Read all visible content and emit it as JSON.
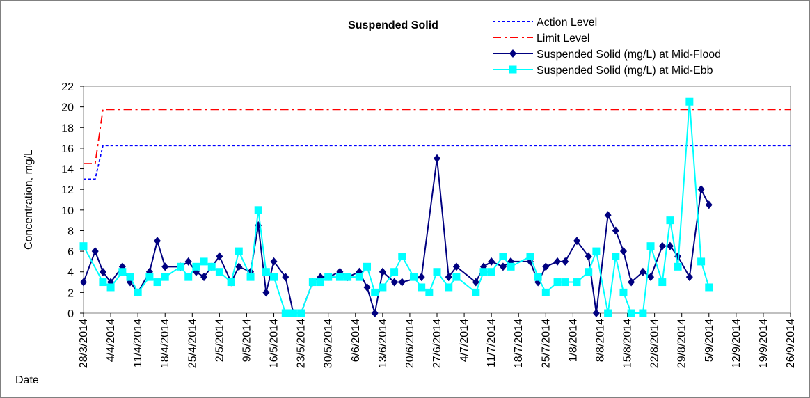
{
  "chart_data": {
    "type": "line",
    "title": "Suspended Solid",
    "y_label": "Concentration, mg/L",
    "x_label": "Date",
    "xlim": [
      "28/3/2014",
      "26/9/2014"
    ],
    "xticks": [
      "28/3/2014",
      "4/4/2014",
      "11/4/2014",
      "18/4/2014",
      "25/4/2014",
      "2/5/2014",
      "9/5/2014",
      "16/5/2014",
      "23/5/2014",
      "30/5/2014",
      "6/6/2014",
      "13/6/2014",
      "20/6/2014",
      "27/6/2014",
      "4/7/2014",
      "11/7/2014",
      "18/7/2014",
      "25/7/2014",
      "1/8/2014",
      "8/8/2014",
      "15/8/2014",
      "22/8/2014",
      "29/8/2014",
      "5/9/2014",
      "12/9/2014",
      "19/9/2014",
      "26/9/2014"
    ],
    "ylim": [
      0,
      22
    ],
    "yticks": [
      0,
      2,
      4,
      6,
      8,
      10,
      12,
      14,
      16,
      18,
      20,
      22
    ],
    "series": [
      {
        "name": "Action Level",
        "color": "#0000ff",
        "dash": "dashed",
        "marker": "none",
        "x": [
          "28/3/2014",
          "31/3/2014",
          "2/4/2014",
          "26/9/2014"
        ],
        "values": [
          13,
          13,
          16.25,
          16.25
        ]
      },
      {
        "name": "Limit Level",
        "color": "#ff0000",
        "dash": "dashdot",
        "marker": "none",
        "x": [
          "28/3/2014",
          "31/3/2014",
          "2/4/2014",
          "26/9/2014"
        ],
        "values": [
          14.5,
          14.5,
          19.75,
          19.75
        ]
      },
      {
        "name": "Suspended Solid (mg/L) at Mid-Flood",
        "color": "#000080",
        "dash": "solid",
        "marker": "diamond",
        "x": [
          "28/3/2014",
          "31/3/2014",
          "2/4/2014",
          "4/4/2014",
          "7/4/2014",
          "9/4/2014",
          "11/4/2014",
          "14/4/2014",
          "16/4/2014",
          "18/4/2014",
          "22/4/2014",
          "24/4/2014",
          "26/4/2014",
          "28/4/2014",
          "30/4/2014",
          "2/5/2014",
          "5/5/2014",
          "7/5/2014",
          "10/5/2014",
          "12/5/2014",
          "14/5/2014",
          "16/5/2014",
          "19/5/2014",
          "21/5/2014",
          "23/5/2014",
          "26/5/2014",
          "28/5/2014",
          "30/5/2014",
          "2/6/2014",
          "4/6/2014",
          "7/6/2014",
          "9/6/2014",
          "11/6/2014",
          "13/6/2014",
          "16/6/2014",
          "18/6/2014",
          "23/6/2014",
          "27/6/2014",
          "30/6/2014",
          "2/7/2014",
          "7/7/2014",
          "9/7/2014",
          "11/7/2014",
          "14/7/2014",
          "16/7/2014",
          "21/7/2014",
          "23/7/2014",
          "25/7/2014",
          "28/7/2014",
          "30/7/2014",
          "2/8/2014",
          "5/8/2014",
          "7/8/2014",
          "10/8/2014",
          "12/8/2014",
          "14/8/2014",
          "16/8/2014",
          "19/8/2014",
          "21/8/2014",
          "24/8/2014",
          "26/8/2014",
          "28/8/2014",
          "31/8/2014",
          "3/9/2014",
          "5/9/2014"
        ],
        "values": [
          3,
          6,
          4,
          3,
          4.5,
          3,
          2,
          4,
          7,
          4.5,
          4.5,
          5,
          4,
          3.5,
          4.5,
          5.5,
          3,
          4.5,
          4,
          8.5,
          2,
          5,
          3.5,
          0,
          0,
          3,
          3.5,
          3.5,
          4,
          3.5,
          4,
          2.5,
          0,
          4,
          3,
          3,
          3.5,
          15,
          3.5,
          4.5,
          3,
          4.5,
          5,
          4.5,
          5,
          5,
          3,
          4.5,
          5,
          5,
          7,
          5.5,
          0,
          9.5,
          8,
          6,
          3,
          4,
          3.5,
          6.5,
          6.5,
          5.5,
          3.5,
          12,
          10.5
        ]
      },
      {
        "name": "Suspended Solid (mg/L) at Mid-Ebb",
        "color": "#00ffff",
        "dash": "solid",
        "marker": "square",
        "x": [
          "28/3/2014",
          "2/4/2014",
          "4/4/2014",
          "7/4/2014",
          "9/4/2014",
          "11/4/2014",
          "14/4/2014",
          "16/4/2014",
          "18/4/2014",
          "22/4/2014",
          "24/4/2014",
          "26/4/2014",
          "28/4/2014",
          "30/4/2014",
          "2/5/2014",
          "5/5/2014",
          "7/5/2014",
          "10/5/2014",
          "12/5/2014",
          "14/5/2014",
          "16/5/2014",
          "19/5/2014",
          "21/5/2014",
          "23/5/2014",
          "26/5/2014",
          "28/5/2014",
          "30/5/2014",
          "2/6/2014",
          "4/6/2014",
          "7/6/2014",
          "9/6/2014",
          "11/6/2014",
          "13/6/2014",
          "16/6/2014",
          "18/6/2014",
          "21/6/2014",
          "23/6/2014",
          "25/6/2014",
          "27/6/2014",
          "30/6/2014",
          "2/7/2014",
          "7/7/2014",
          "9/7/2014",
          "11/7/2014",
          "14/7/2014",
          "16/7/2014",
          "21/7/2014",
          "23/7/2014",
          "25/7/2014",
          "28/7/2014",
          "30/7/2014",
          "2/8/2014",
          "5/8/2014",
          "7/8/2014",
          "10/8/2014",
          "12/8/2014",
          "14/8/2014",
          "16/8/2014",
          "19/8/2014",
          "21/8/2014",
          "24/8/2014",
          "26/8/2014",
          "28/8/2014",
          "31/8/2014",
          "3/9/2014",
          "5/9/2014"
        ],
        "values": [
          6.5,
          3,
          2.5,
          4,
          3.5,
          2,
          3.5,
          3,
          3.5,
          4.5,
          3.5,
          4.5,
          5,
          4.5,
          4,
          3,
          6,
          3.5,
          10,
          4,
          3.5,
          0,
          0,
          0,
          3,
          3,
          3.5,
          3.5,
          3.5,
          3.5,
          4.5,
          2,
          2.5,
          4,
          5.5,
          3.5,
          2.5,
          2,
          4,
          2.5,
          3.5,
          2,
          4,
          4,
          5.5,
          4.5,
          5.5,
          3.5,
          2,
          3,
          3,
          3,
          4,
          6,
          0,
          5.5,
          2,
          0,
          0,
          6.5,
          3,
          9,
          4.5,
          20.5,
          5,
          2.5
        ]
      }
    ]
  }
}
